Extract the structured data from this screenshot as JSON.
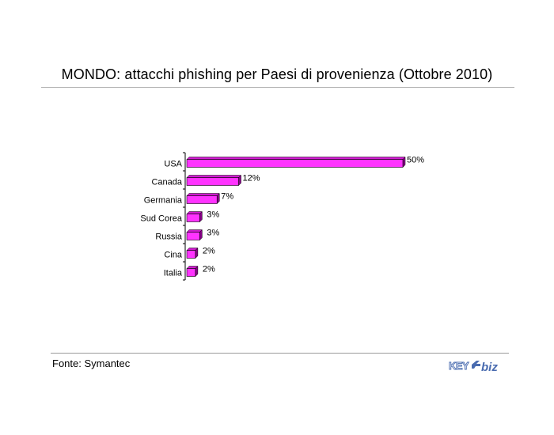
{
  "header": {
    "title": "MONDO: attacchi phishing per Paesi di provenienza (Ottobre 2010)"
  },
  "footer": {
    "source": "Fonte: Symantec",
    "logo_text": "KEY4biz"
  },
  "colors": {
    "bar_front": "#ff33ff",
    "bar_top": "#d01ad0",
    "bar_side": "#8a008a",
    "axis": "#000000",
    "logo_blue": "#4a6cb0"
  },
  "chart_data": {
    "type": "bar",
    "orientation": "horizontal",
    "categories": [
      "USA",
      "Canada",
      "Germania",
      "Sud Corea",
      "Russia",
      "Cina",
      "Italia"
    ],
    "values": [
      50,
      12,
      7,
      3,
      3,
      2,
      2
    ],
    "value_labels": [
      "50%",
      "12%",
      "7%",
      "3%",
      "3%",
      "2%",
      "2%"
    ],
    "xlim": [
      0,
      50
    ],
    "grid": false,
    "legend": "none"
  }
}
